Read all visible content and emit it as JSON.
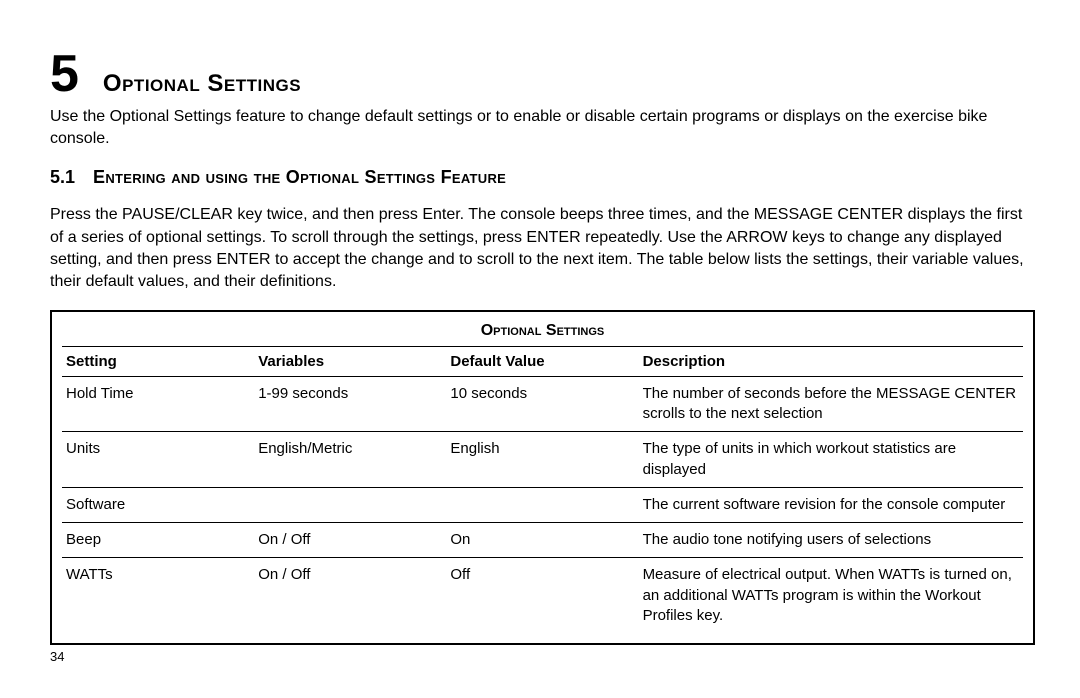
{
  "chapter": {
    "number": "5",
    "title": "Optional Settings"
  },
  "intro": "Use the Optional Settings feature to change default settings or to enable or disable certain programs or displays on the exercise bike console.",
  "section": {
    "number": "5.1",
    "title": "Entering and using the Optional Settings Feature"
  },
  "body": "Press the PAUSE/CLEAR key twice, and then press Enter. The console beeps three times, and the MESSAGE CENTER displays the first of a series of optional settings. To scroll through the settings, press ENTER repeatedly. Use the ARROW keys to change any displayed setting, and then press ENTER to accept the change and to scroll to the next item. The table below lists the settings, their variable values, their default values, and their definitions.",
  "table": {
    "title": "Optional Settings",
    "columns": [
      "Setting",
      "Variables",
      "Default Value",
      "Description"
    ],
    "rows": [
      [
        "Hold Time",
        "1-99 seconds",
        "10 seconds",
        "The number of seconds before the MESSAGE CENTER scrolls to the next selection"
      ],
      [
        "Units",
        "English/Metric",
        "English",
        "The type of units in which workout statistics are displayed"
      ],
      [
        "Software",
        "",
        "",
        "The current software revision for the console computer"
      ],
      [
        "Beep",
        "On / Off",
        "On",
        "The audio tone notifying users of selections"
      ],
      [
        "WATTs",
        "On / Off",
        "Off",
        "Measure of electrical output. When WATTs is turned on, an additional WATTs program is within the Workout Profiles key."
      ]
    ]
  },
  "page_number": "34",
  "style": {
    "font_family": "Arial, Helvetica, sans-serif",
    "text_color": "#000000",
    "background_color": "#ffffff",
    "border_color": "#000000",
    "chapter_num_fontsize": 52,
    "chapter_title_fontsize": 24,
    "section_fontsize": 18,
    "body_fontsize": 16,
    "table_fontsize": 15,
    "page_num_fontsize": 13
  }
}
